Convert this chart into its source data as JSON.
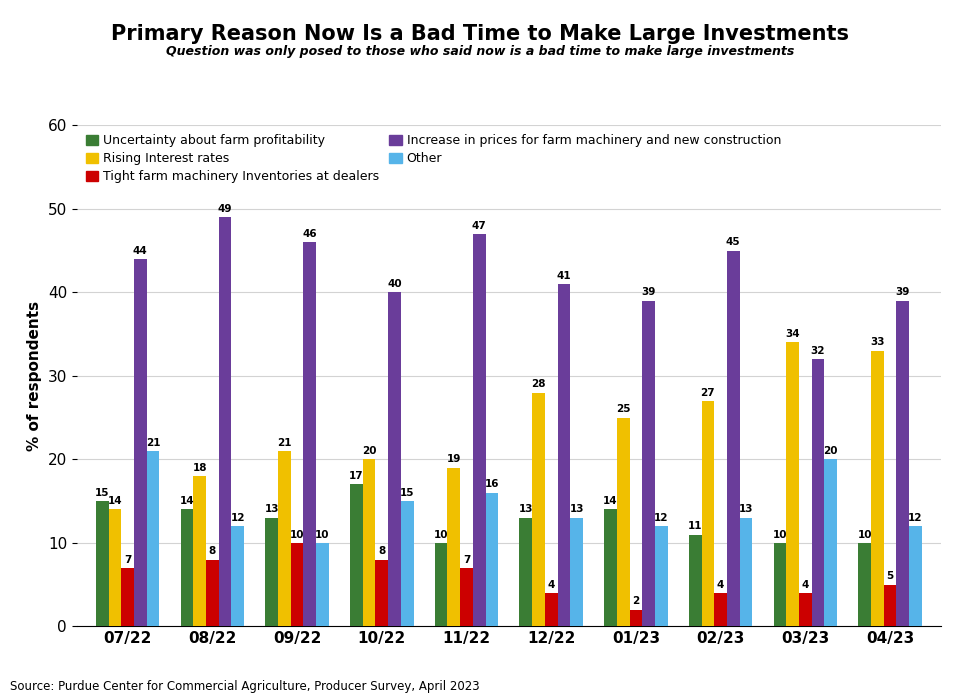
{
  "title": "Primary Reason Now Is a Bad Time to Make Large Investments",
  "subtitle": "Question was only posed to those who said now is a bad time to make large investments",
  "ylabel": "% of respondents",
  "source": "Source: Purdue Center for Commercial Agriculture, Producer Survey, April 2023",
  "categories": [
    "07/22",
    "08/22",
    "09/22",
    "10/22",
    "11/22",
    "12/22",
    "01/23",
    "02/23",
    "03/23",
    "04/23"
  ],
  "series": {
    "Uncertainty about farm profitability": {
      "values": [
        15,
        14,
        13,
        17,
        10,
        13,
        14,
        11,
        10,
        10
      ],
      "color": "#3a7d34"
    },
    "Rising Interest rates": {
      "values": [
        14,
        18,
        21,
        20,
        19,
        28,
        25,
        27,
        34,
        33
      ],
      "color": "#f0c000"
    },
    "Tight farm machinery Inventories at dealers": {
      "values": [
        7,
        8,
        10,
        8,
        7,
        4,
        2,
        4,
        4,
        5
      ],
      "color": "#cc0000"
    },
    "Increase in prices for farm machinery and new construction": {
      "values": [
        44,
        49,
        46,
        40,
        47,
        41,
        39,
        45,
        32,
        39
      ],
      "color": "#6a3d9a"
    },
    "Other": {
      "values": [
        21,
        12,
        10,
        15,
        16,
        13,
        12,
        13,
        20,
        12
      ],
      "color": "#56b4e9"
    }
  },
  "ylim": [
    0,
    60
  ],
  "yticks": [
    0,
    10,
    20,
    30,
    40,
    50,
    60
  ],
  "bar_width": 0.15,
  "figsize": [
    9.6,
    6.96
  ],
  "dpi": 100
}
